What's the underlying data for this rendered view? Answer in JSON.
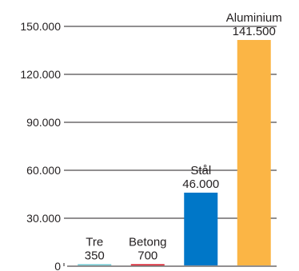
{
  "chart_data": {
    "type": "bar",
    "categories": [
      "Tre",
      "Betong",
      "Stål",
      "Aluminium"
    ],
    "values": [
      350,
      700,
      46000,
      141500
    ],
    "value_labels": [
      "350",
      "700",
      "46.000",
      "141.500"
    ],
    "colors": [
      "#6cc7d0",
      "#d6101f",
      "#0077c8",
      "#fbb545"
    ],
    "y_ticks": [
      0,
      30000,
      60000,
      90000,
      120000,
      150000
    ],
    "y_tick_labels": [
      "0",
      "30.000",
      "60.000",
      "90.000",
      "120.000",
      "150.000"
    ],
    "ylim": [
      0,
      150000
    ],
    "grid": true,
    "title": "",
    "xlabel": "",
    "ylabel": ""
  }
}
